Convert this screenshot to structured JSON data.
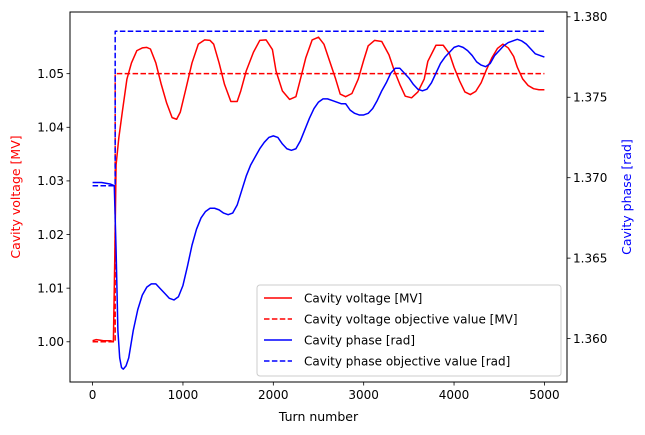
{
  "chart_data": {
    "type": "line",
    "title": "",
    "xlabel": "Turn number",
    "ylabel_left": "Cavity voltage [MV]",
    "ylabel_right": "Cavity phase [rad]",
    "xlim": [
      -250,
      5250
    ],
    "ylim_left": [
      0.9925,
      1.0615
    ],
    "ylim_right": [
      1.3573,
      1.3803
    ],
    "x_ticks": [
      0,
      1000,
      2000,
      3000,
      4000,
      5000
    ],
    "y_ticks_left": [
      1.0,
      1.01,
      1.02,
      1.03,
      1.04,
      1.05
    ],
    "y_ticks_right": [
      1.36,
      1.365,
      1.37,
      1.375,
      1.38
    ],
    "left_axis_color": "#ff0000",
    "right_axis_color": "#0000ff",
    "legend_position": "lower-right",
    "series": [
      {
        "name": "Cavity voltage [MV]",
        "axis": "left",
        "color": "#ff0000",
        "style": "solid",
        "x": [
          0,
          40,
          80,
          120,
          160,
          200,
          230,
          245,
          260,
          290,
          330,
          380,
          430,
          490,
          550,
          600,
          640,
          700,
          760,
          820,
          880,
          930,
          970,
          1030,
          1100,
          1170,
          1240,
          1300,
          1340,
          1400,
          1460,
          1530,
          1600,
          1640,
          1700,
          1780,
          1850,
          1920,
          1990,
          2030,
          2100,
          2180,
          2250,
          2300,
          2360,
          2430,
          2500,
          2560,
          2620,
          2690,
          2740,
          2800,
          2870,
          2940,
          3000,
          3050,
          3120,
          3200,
          3280,
          3340,
          3400,
          3460,
          3530,
          3600,
          3670,
          3710,
          3800,
          3880,
          3950,
          4000,
          4060,
          4120,
          4180,
          4240,
          4300,
          4360,
          4420,
          4480,
          4540,
          4600,
          4660,
          4700,
          4760,
          4820,
          4880,
          4940,
          5000
        ],
        "y": [
          1.0002,
          1.0004,
          1.0003,
          1.0002,
          1.0002,
          1.0002,
          1.0,
          1.015,
          1.033,
          1.038,
          1.043,
          1.049,
          1.052,
          1.0543,
          1.0548,
          1.0549,
          1.0546,
          1.052,
          1.048,
          1.0445,
          1.0418,
          1.0415,
          1.0428,
          1.047,
          1.052,
          1.0555,
          1.0563,
          1.0562,
          1.0555,
          1.052,
          1.048,
          1.0448,
          1.0448,
          1.0468,
          1.0505,
          1.054,
          1.0562,
          1.0563,
          1.0545,
          1.0505,
          1.0468,
          1.0452,
          1.0457,
          1.049,
          1.053,
          1.0563,
          1.0568,
          1.0555,
          1.0525,
          1.049,
          1.0462,
          1.0457,
          1.0463,
          1.049,
          1.0525,
          1.0552,
          1.0562,
          1.056,
          1.0535,
          1.0505,
          1.048,
          1.0458,
          1.0455,
          1.0466,
          1.049,
          1.0523,
          1.0553,
          1.0553,
          1.0537,
          1.0512,
          1.0487,
          1.0466,
          1.0461,
          1.0467,
          1.0483,
          1.0508,
          1.053,
          1.0547,
          1.0555,
          1.0548,
          1.0532,
          1.0512,
          1.049,
          1.0478,
          1.0472,
          1.047,
          1.047
        ]
      },
      {
        "name": "Cavity voltage objective value [MV]",
        "axis": "left",
        "color": "#ff0000",
        "style": "dashed",
        "x": [
          0,
          250,
          250,
          5000
        ],
        "y": [
          1.0,
          1.0,
          1.05,
          1.05
        ]
      },
      {
        "name": "Cavity phase [rad]",
        "axis": "right",
        "color": "#0000ff",
        "style": "solid",
        "x": [
          0,
          100,
          200,
          240,
          260,
          280,
          300,
          320,
          340,
          370,
          400,
          450,
          500,
          550,
          600,
          650,
          700,
          750,
          800,
          850,
          900,
          950,
          1000,
          1050,
          1100,
          1150,
          1200,
          1250,
          1300,
          1350,
          1400,
          1450,
          1500,
          1550,
          1600,
          1650,
          1700,
          1750,
          1800,
          1850,
          1900,
          1950,
          2000,
          2050,
          2100,
          2150,
          2200,
          2250,
          2300,
          2350,
          2400,
          2450,
          2500,
          2550,
          2600,
          2650,
          2700,
          2750,
          2800,
          2850,
          2900,
          2950,
          3000,
          3050,
          3100,
          3150,
          3200,
          3250,
          3300,
          3350,
          3400,
          3450,
          3500,
          3550,
          3600,
          3650,
          3700,
          3750,
          3800,
          3850,
          3900,
          3950,
          4000,
          4050,
          4100,
          4150,
          4200,
          4250,
          4300,
          4350,
          4400,
          4450,
          4500,
          4550,
          4600,
          4650,
          4700,
          4750,
          4800,
          4850,
          4900,
          4950,
          5000
        ],
        "y": [
          1.3697,
          1.3697,
          1.3696,
          1.3695,
          1.3655,
          1.3605,
          1.3588,
          1.3582,
          1.3581,
          1.3583,
          1.3588,
          1.3605,
          1.3618,
          1.3627,
          1.3632,
          1.3634,
          1.3634,
          1.3631,
          1.3628,
          1.3625,
          1.3624,
          1.3626,
          1.3633,
          1.3645,
          1.3658,
          1.3668,
          1.3675,
          1.3679,
          1.3681,
          1.3681,
          1.368,
          1.3678,
          1.3677,
          1.3678,
          1.3683,
          1.3692,
          1.3701,
          1.3708,
          1.3713,
          1.3718,
          1.3722,
          1.3725,
          1.3726,
          1.3725,
          1.3721,
          1.3718,
          1.3717,
          1.3718,
          1.3723,
          1.373,
          1.3737,
          1.3743,
          1.3747,
          1.3749,
          1.3749,
          1.3748,
          1.3747,
          1.3746,
          1.3746,
          1.3742,
          1.374,
          1.3739,
          1.3739,
          1.374,
          1.3743,
          1.3748,
          1.3754,
          1.3759,
          1.3765,
          1.3768,
          1.3768,
          1.3765,
          1.3762,
          1.3758,
          1.3755,
          1.3754,
          1.3755,
          1.3759,
          1.3765,
          1.3771,
          1.3775,
          1.3778,
          1.3781,
          1.3782,
          1.3781,
          1.3779,
          1.3776,
          1.3772,
          1.377,
          1.3769,
          1.3771,
          1.3776,
          1.3779,
          1.3782,
          1.3784,
          1.3785,
          1.3786,
          1.3785,
          1.3783,
          1.378,
          1.3777,
          1.3776,
          1.3775
        ]
      },
      {
        "name": "Cavity phase objective value [rad]",
        "axis": "right",
        "color": "#0000ff",
        "style": "dashed",
        "x": [
          0,
          250,
          250,
          5000
        ],
        "y": [
          1.3695,
          1.3695,
          1.3791,
          1.3791
        ]
      }
    ]
  }
}
